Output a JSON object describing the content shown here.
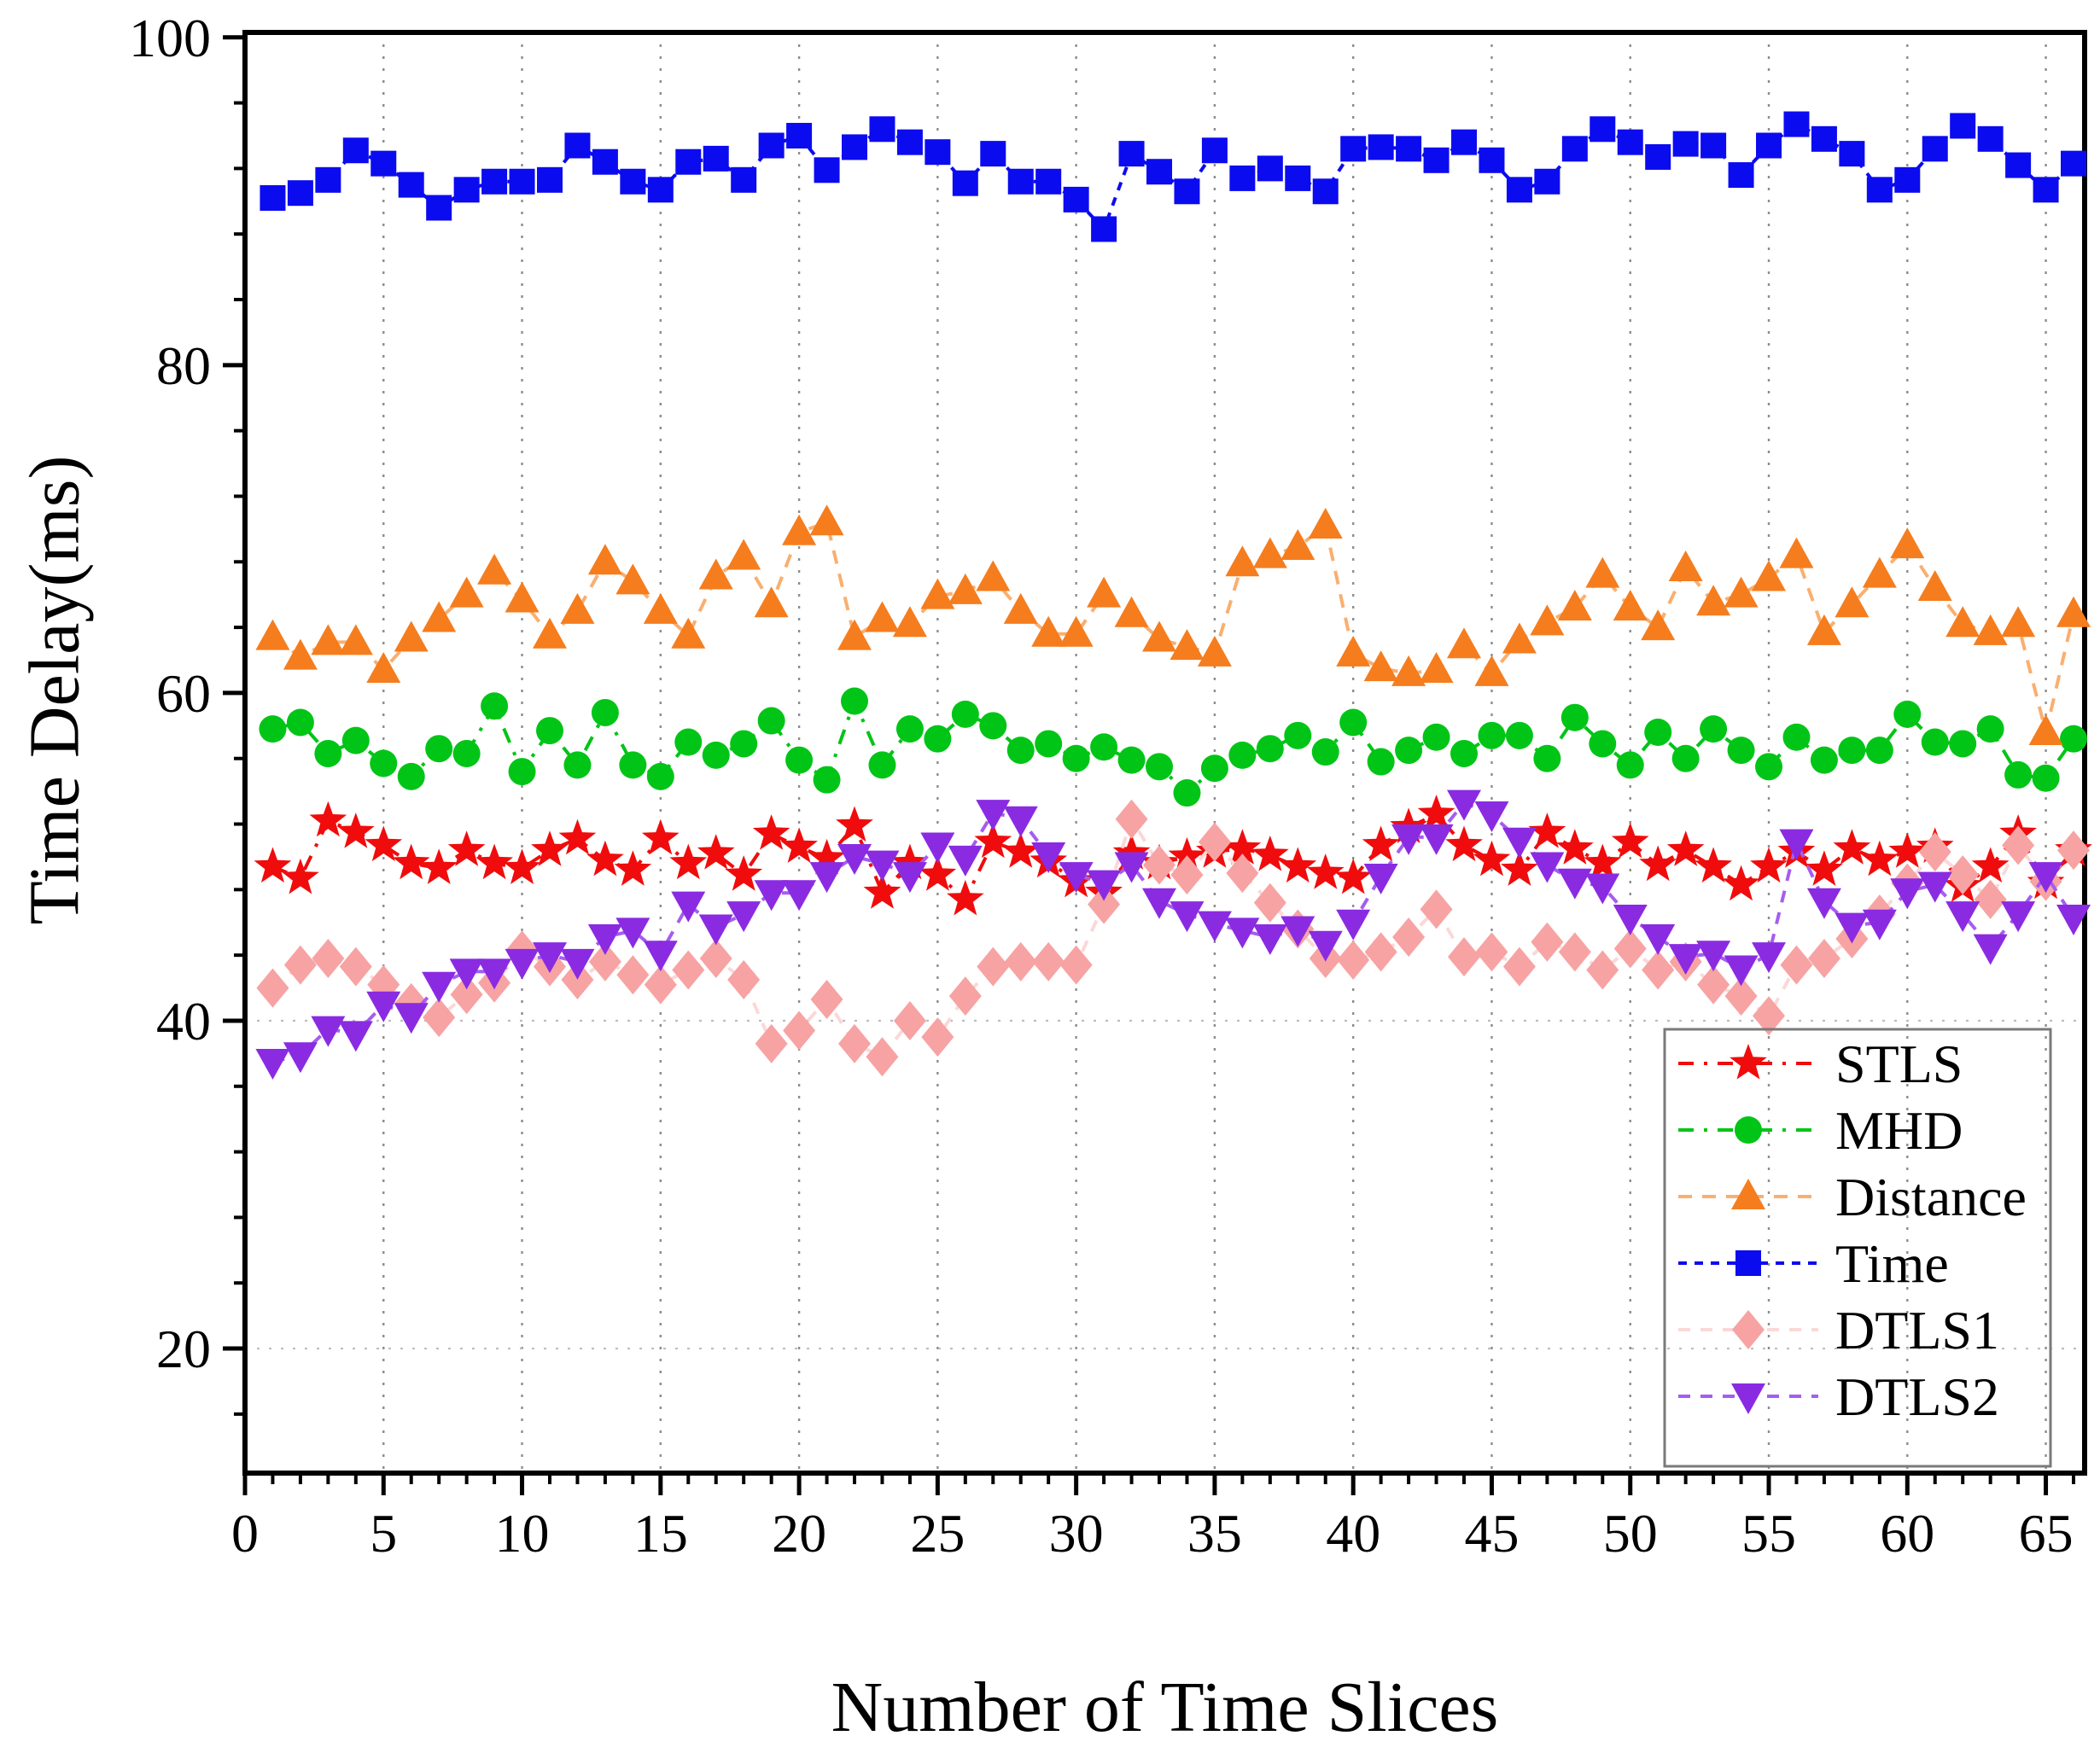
{
  "axes": {
    "x_label": "Number of Time Slices",
    "y_label": "Time Delay(ms)"
  },
  "legend": {
    "entries": [
      {
        "label": "STLS",
        "series": "STLS"
      },
      {
        "label": "MHD",
        "series": "MHD"
      },
      {
        "label": "Distance",
        "series": "Distance"
      },
      {
        "label": "Time",
        "series": "Time"
      },
      {
        "label": "DTLS1",
        "series": "DTLS1"
      },
      {
        "label": "DTLS2",
        "series": "DTLS2"
      }
    ]
  },
  "chart_data": {
    "type": "line",
    "title": "",
    "xlabel": "Number of Time Slices",
    "ylabel": "Time Delay(ms)",
    "xlim": [
      0,
      66.4
    ],
    "ylim": [
      12.4,
      100.3
    ],
    "x_major_ticks": [
      0,
      5,
      10,
      15,
      20,
      25,
      30,
      35,
      40,
      45,
      50,
      55,
      60,
      65
    ],
    "x_minor_step": 1,
    "y_major_ticks": [
      20,
      40,
      60,
      80,
      100
    ],
    "y_minor_step": 4,
    "grid_vertical_at": [
      5,
      10,
      15,
      20,
      25,
      30,
      35,
      40,
      45,
      50,
      55,
      60,
      65
    ],
    "grid_horizontal_at": [
      20,
      40
    ],
    "legend_position": "inside lower right",
    "x": [
      1,
      2,
      3,
      4,
      5,
      6,
      7,
      8,
      9,
      10,
      11,
      12,
      13,
      14,
      15,
      16,
      17,
      18,
      19,
      20,
      21,
      22,
      23,
      24,
      25,
      26,
      27,
      28,
      29,
      30,
      31,
      32,
      33,
      34,
      35,
      36,
      37,
      38,
      39,
      40,
      41,
      42,
      43,
      44,
      45,
      46,
      47,
      48,
      49,
      50,
      51,
      52,
      53,
      54,
      55,
      56,
      57,
      58,
      59,
      60,
      61,
      62,
      63,
      64,
      65,
      66
    ],
    "series": [
      {
        "name": "STLS",
        "marker": "star",
        "marker_color": "#f00c0c",
        "line_color": "#f00c0c",
        "line_dash": "18 12 4 12",
        "values": [
          49.4,
          48.7,
          52.2,
          51.5,
          50.7,
          49.6,
          49.3,
          50.4,
          49.6,
          49.3,
          50.4,
          51.1,
          49.8,
          49.2,
          51.1,
          49.6,
          50.2,
          48.9,
          51.4,
          50.6,
          49.9,
          51.9,
          47.8,
          49.6,
          48.9,
          47.4,
          50.9,
          50.3,
          49.7,
          48.5,
          47.8,
          50.2,
          49.6,
          50.0,
          50.3,
          50.5,
          50.1,
          49.4,
          49.0,
          48.7,
          50.7,
          51.8,
          52.6,
          50.7,
          49.8,
          49.2,
          51.5,
          50.5,
          49.6,
          50.9,
          49.5,
          50.4,
          49.4,
          48.3,
          49.4,
          50.3,
          49.2,
          50.5,
          49.8,
          50.3,
          50.6,
          48.2,
          49.4,
          51.4,
          48.4,
          50.4
        ]
      },
      {
        "name": "MHD",
        "marker": "circle",
        "marker_color": "#00c516",
        "line_color": "#00c516",
        "line_dash": "18 12 4 12",
        "values": [
          57.8,
          58.2,
          56.3,
          57.1,
          55.7,
          54.9,
          56.6,
          56.3,
          59.2,
          55.2,
          57.7,
          55.6,
          58.8,
          55.6,
          54.9,
          57.0,
          56.2,
          56.9,
          58.3,
          55.9,
          54.7,
          59.5,
          55.6,
          57.8,
          57.2,
          58.7,
          58.0,
          56.5,
          56.9,
          56.0,
          56.7,
          55.9,
          55.5,
          53.9,
          55.4,
          56.2,
          56.6,
          57.4,
          56.4,
          58.2,
          55.8,
          56.5,
          57.3,
          56.3,
          57.4,
          57.4,
          56.0,
          58.5,
          56.9,
          55.6,
          57.6,
          56.0,
          57.8,
          56.5,
          55.5,
          57.3,
          55.9,
          56.5,
          56.5,
          58.7,
          57.0,
          56.9,
          57.8,
          55.0,
          54.8,
          57.2
        ]
      },
      {
        "name": "Distance",
        "marker": "triangle-up",
        "marker_color": "#f57d1e",
        "line_color": "#f9af70",
        "line_dash": "16 12",
        "values": [
          63.4,
          62.2,
          63.1,
          63.1,
          61.4,
          63.3,
          64.5,
          66.0,
          67.4,
          65.7,
          63.5,
          65.0,
          68.0,
          66.8,
          65.0,
          63.5,
          67.1,
          68.3,
          65.4,
          69.8,
          70.4,
          63.4,
          64.5,
          64.2,
          65.9,
          66.2,
          67.0,
          65.0,
          63.6,
          63.6,
          66.0,
          64.8,
          63.3,
          62.8,
          62.4,
          67.9,
          68.4,
          68.9,
          70.2,
          62.4,
          61.5,
          61.2,
          61.4,
          62.9,
          61.2,
          63.2,
          64.3,
          65.2,
          67.2,
          65.2,
          64.0,
          67.6,
          65.5,
          66.0,
          67.0,
          68.4,
          63.7,
          65.4,
          67.2,
          69.0,
          66.4,
          64.2,
          63.7,
          64.2,
          57.6,
          64.8
        ]
      },
      {
        "name": "Time",
        "marker": "square",
        "marker_color": "#0b0bf0",
        "line_color": "#0b0bf0",
        "line_dash": "10 9",
        "values": [
          90.2,
          90.5,
          91.3,
          93.1,
          92.3,
          91.0,
          89.6,
          90.7,
          91.2,
          91.2,
          91.3,
          93.4,
          92.4,
          91.2,
          90.7,
          92.4,
          92.6,
          91.3,
          93.4,
          94.0,
          91.9,
          93.3,
          94.4,
          93.6,
          93.0,
          91.1,
          92.9,
          91.2,
          91.2,
          90.1,
          88.3,
          92.9,
          91.8,
          90.6,
          93.1,
          91.4,
          92.0,
          91.4,
          90.6,
          93.2,
          93.3,
          93.2,
          92.5,
          93.6,
          92.5,
          90.7,
          91.2,
          93.2,
          94.4,
          93.6,
          92.7,
          93.5,
          93.4,
          91.6,
          93.4,
          94.7,
          93.8,
          92.9,
          90.7,
          91.3,
          93.2,
          94.6,
          93.8,
          92.2,
          90.7,
          92.3
        ]
      },
      {
        "name": "DTLS1",
        "marker": "diamond",
        "marker_color": "#f7a3a3",
        "line_color": "#fbd8d8",
        "line_dash": "14 12",
        "values": [
          42.0,
          43.4,
          43.8,
          43.3,
          42.2,
          41.1,
          40.2,
          41.6,
          42.3,
          44.3,
          43.3,
          42.5,
          43.6,
          42.8,
          42.2,
          43.1,
          43.8,
          42.5,
          38.6,
          39.4,
          41.3,
          38.6,
          37.8,
          40.0,
          39.0,
          41.5,
          43.3,
          43.6,
          43.6,
          43.4,
          47.1,
          52.3,
          49.5,
          48.9,
          50.9,
          49.0,
          47.2,
          45.6,
          43.8,
          43.7,
          44.2,
          45.1,
          46.8,
          43.9,
          44.2,
          43.3,
          44.8,
          44.2,
          43.1,
          44.4,
          43.1,
          43.6,
          42.2,
          41.5,
          40.3,
          43.4,
          43.8,
          45.0,
          46.5,
          48.4,
          50.3,
          48.9,
          47.4,
          50.7,
          48.5,
          50.4
        ]
      },
      {
        "name": "DTLS2",
        "marker": "triangle-down",
        "marker_color": "#8a2be2",
        "line_color": "#a55df0",
        "line_dash": "14 12",
        "values": [
          37.5,
          37.9,
          39.5,
          39.2,
          41.0,
          40.3,
          42.2,
          43.0,
          43.0,
          43.6,
          44.0,
          43.6,
          45.1,
          45.5,
          44.1,
          47.1,
          45.7,
          46.5,
          47.8,
          47.8,
          48.9,
          50.0,
          49.6,
          48.9,
          50.7,
          49.9,
          52.7,
          52.3,
          50.1,
          48.9,
          48.4,
          49.5,
          47.3,
          46.5,
          45.9,
          45.5,
          45.1,
          45.6,
          44.7,
          46.0,
          48.8,
          51.2,
          51.2,
          53.3,
          52.6,
          51.0,
          49.5,
          48.5,
          48.2,
          46.3,
          45.1,
          43.9,
          44.1,
          43.2,
          44.0,
          50.9,
          47.3,
          45.8,
          46.0,
          47.9,
          48.3,
          46.5,
          44.5,
          46.5,
          48.9,
          46.3
        ]
      }
    ]
  },
  "style": {
    "spine_color": "#000000",
    "grid_color": "#8c8c8c",
    "legend_border_color": "#7a7a7a",
    "background": "#ffffff"
  }
}
